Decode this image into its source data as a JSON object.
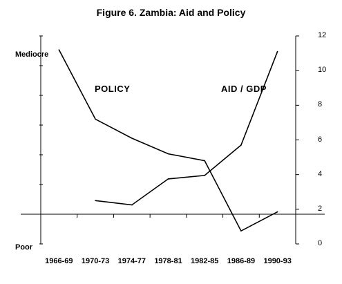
{
  "title": "Figure 6.  Zambia: Aid and Policy",
  "left_axis": {
    "top_label": "Mediocre",
    "bottom_label": "Poor"
  },
  "labels": {
    "policy": "POLICY",
    "aid": "AID / GDP"
  },
  "chart_data": {
    "type": "line",
    "title": "Figure 6.  Zambia: Aid and Policy",
    "categories": [
      "1966-69",
      "1970-73",
      "1974-77",
      "1978-81",
      "1982-85",
      "1986-89",
      "1990-93"
    ],
    "y_right": {
      "ticks": [
        0,
        2,
        4,
        6,
        8,
        10,
        12
      ],
      "ylim": [
        0,
        12
      ]
    },
    "y_left": {
      "labels": [
        "Poor",
        "Mediocre"
      ]
    },
    "series": [
      {
        "name": "POLICY",
        "axis": "left",
        "values": [
          11.2,
          7.2,
          6.1,
          5.2,
          4.8,
          0.75,
          1.85
        ]
      },
      {
        "name": "AID / GDP",
        "axis": "right",
        "values": [
          null,
          2.5,
          2.25,
          3.75,
          3.95,
          5.7,
          11.1
        ]
      }
    ],
    "legend": "inline labels",
    "grid": false
  }
}
